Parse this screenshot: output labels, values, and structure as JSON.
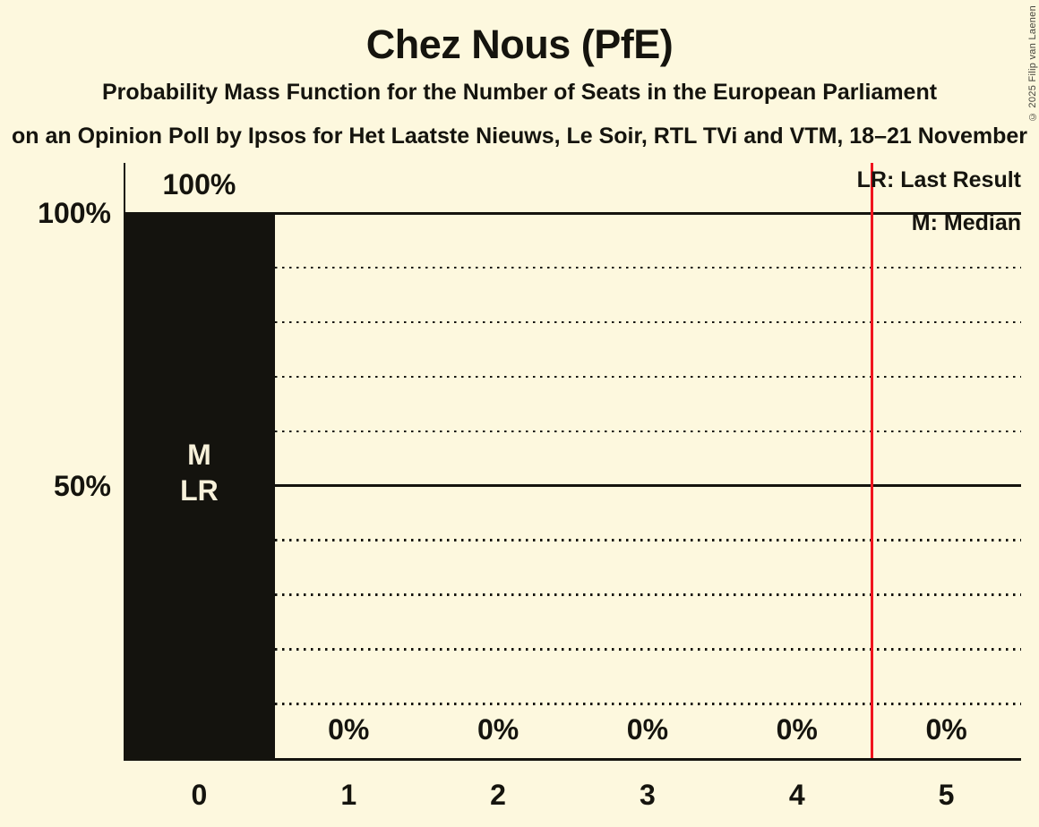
{
  "title": "Chez Nous (PfE)",
  "subtitle": "Probability Mass Function for the Number of Seats in the European Parliament",
  "source_line": "on an Opinion Poll by Ipsos for Het Laatste Nieuws, Le Soir, RTL TVi and VTM, 18–21 November",
  "copyright": "© 2025 Filip van Laenen",
  "legend": {
    "last_result": "LR: Last Result",
    "median": "M: Median"
  },
  "colors": {
    "background": "#FDF8DE",
    "ink": "#15140E",
    "bar": "#14130E",
    "bar_annotation_text": "#F7F1DA",
    "red_line": "#F0141E"
  },
  "chart_data": {
    "type": "bar",
    "title": "Chez Nous (PfE)",
    "categories": [
      "0",
      "1",
      "2",
      "3",
      "4",
      "5"
    ],
    "values": [
      100,
      0,
      0,
      0,
      0,
      0
    ],
    "value_labels": [
      "100%",
      "0%",
      "0%",
      "0%",
      "0%",
      "0%"
    ],
    "xlabel": "",
    "ylabel": "",
    "ylim": [
      0,
      100
    ],
    "y_axis_ticks": [
      {
        "value": 100,
        "label": "100%"
      },
      {
        "value": 50,
        "label": "50%"
      }
    ],
    "solid_gridlines": [
      100,
      50
    ],
    "dotted_gridlines": [
      90,
      80,
      70,
      60,
      40,
      30,
      20,
      10
    ],
    "median_seats": 0,
    "last_result_seats": 0,
    "bar_annotations": [
      {
        "category": "0",
        "lines": [
          "M",
          "LR"
        ]
      }
    ],
    "red_vertical_line_at": 4.5,
    "grid": "horizontal-dotted",
    "legend_position": "top-right"
  }
}
